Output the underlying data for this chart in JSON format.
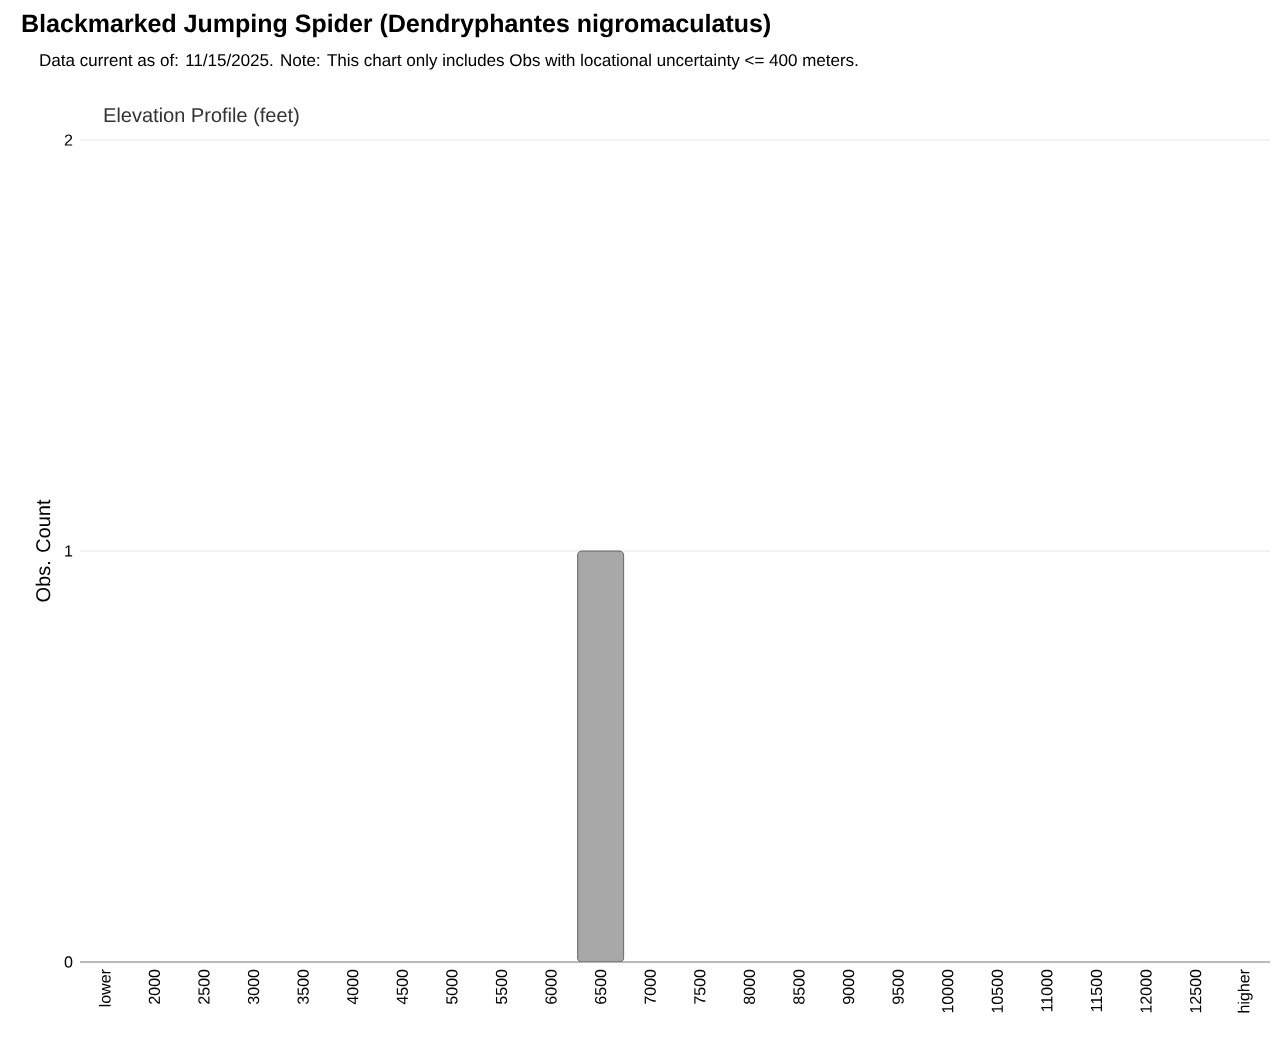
{
  "chart_data": {
    "type": "bar",
    "title": "Blackmarked Jumping Spider   (Dendryphantes nigromaculatus)",
    "subtitle": "Data current as of: 11/15/2025.    Note: This chart only includes Obs with locational uncertainty <= 400 meters.",
    "annotations": [
      "Elevation Profile (feet)"
    ],
    "ylabel": "Obs. Count",
    "categories": [
      "lower",
      "2000",
      "2500",
      "3000",
      "3500",
      "4000",
      "4500",
      "5000",
      "5500",
      "6000",
      "6500",
      "7000",
      "7500",
      "8000",
      "8500",
      "9000",
      "9500",
      "10000",
      "10500",
      "11000",
      "11500",
      "12000",
      "12500",
      "higher"
    ],
    "values": [
      0,
      0,
      0,
      0,
      0,
      0,
      0,
      0,
      0,
      0,
      1,
      0,
      0,
      0,
      0,
      0,
      0,
      0,
      0,
      0,
      0,
      0,
      0,
      0
    ],
    "color": "#a8a8a8",
    "ylim": [
      0,
      2
    ],
    "yticks": [
      0,
      1,
      2
    ],
    "grid": "y"
  }
}
